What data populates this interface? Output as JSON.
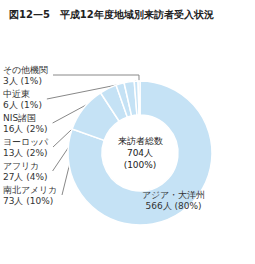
{
  "chart_data": {
    "type": "pie",
    "title": "図12—5　平成12年度地域別来訪者受入状況",
    "categories": [
      "アジア・大洋州",
      "南北アメリカ",
      "アフリカ",
      "ヨーロッパ",
      "NIS諸国",
      "中近東",
      "その他機関"
    ],
    "values": [
      566,
      73,
      27,
      13,
      16,
      6,
      3
    ],
    "value_labels": [
      "566人 (80%)",
      "73人 (10%)",
      "27人 (4%)",
      "13人 (2%)",
      "16人 (2%)",
      "6人 (1%)",
      "3人 (1%)"
    ],
    "color": "#c5e2f5",
    "annotation": "来訪者総数\n704人\n(100%)",
    "data_labels": true
  }
}
